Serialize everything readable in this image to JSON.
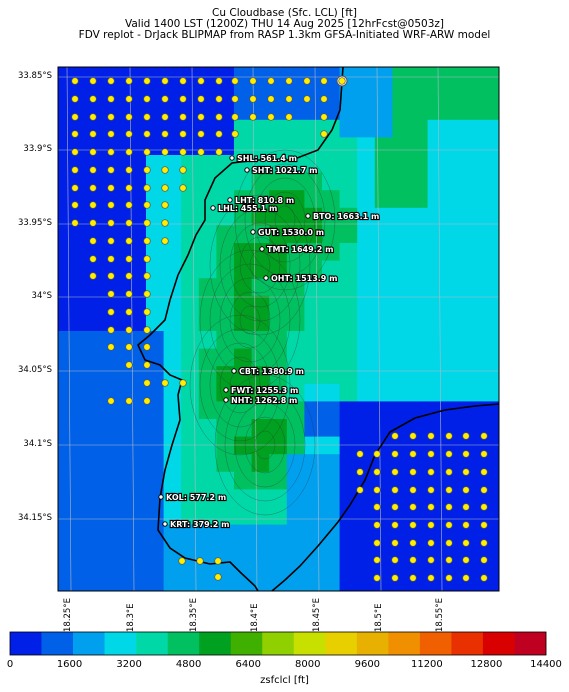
{
  "title": {
    "line1": "Cu Cloudbase (Sfc. LCL) [ft]",
    "line2": "Valid 1400 LST (1200Z) THU 14 Aug 2025 [12hrFcst@0503z]",
    "line3": "FDV replot - DrJack BLIPMAP from RASP 1.3km GFSA-Initiated WRF-ARW model"
  },
  "axes": {
    "y_ticks": [
      "33.85°S",
      "33.9°S",
      "33.95°S",
      "34°S",
      "34.05°S",
      "34.1°S",
      "34.15°S"
    ],
    "x_ticks": [
      "18.25°E",
      "18.3°E",
      "18.35°E",
      "18.4°E",
      "18.45°E",
      "18.5°E",
      "18.55°E"
    ]
  },
  "stations": [
    {
      "label": "SHL: 561.4 m"
    },
    {
      "label": "SHT: 1021.7 m"
    },
    {
      "label": "LHT: 810.8 m"
    },
    {
      "label": "LHL: 455.1 m"
    },
    {
      "label": "BTO: 1663.1 m"
    },
    {
      "label": "GUT: 1530.0 m"
    },
    {
      "label": "TMT: 1649.2 m"
    },
    {
      "label": "OHT: 1513.9 m"
    },
    {
      "label": "CBT: 1380.9 m"
    },
    {
      "label": "FWT: 1255.3 m"
    },
    {
      "label": "NHT: 1262.8 m"
    },
    {
      "label": "KOL: 577.2 m"
    },
    {
      "label": "KRT: 379.2 m"
    }
  ],
  "colorbar": {
    "ticks": [
      "0",
      "1600",
      "3200",
      "4800",
      "6400",
      "8000",
      "9600",
      "11200",
      "12800",
      "14400"
    ],
    "label": "zsfclcl [ft]",
    "colors": [
      "#0020e8",
      "#0060e8",
      "#00a0ee",
      "#00d8e8",
      "#00d8a8",
      "#00c060",
      "#00a020",
      "#40b000",
      "#90d000",
      "#c8e000",
      "#e8d000",
      "#e8b000",
      "#f09000",
      "#f06000",
      "#e83000",
      "#d80000",
      "#c00020"
    ]
  }
}
